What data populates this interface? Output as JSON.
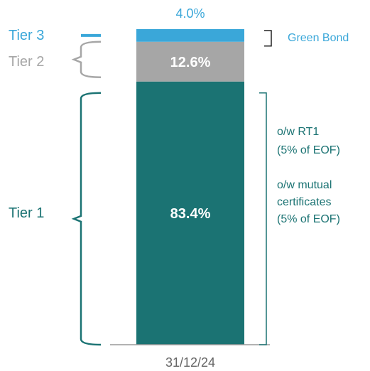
{
  "chart_data": {
    "type": "bar",
    "stacked": true,
    "categories": [
      "31/12/24"
    ],
    "series": [
      {
        "name": "Tier 1",
        "color": "#1b7373",
        "values": [
          83.4
        ],
        "value_labels": [
          "83.4%"
        ]
      },
      {
        "name": "Tier 2",
        "color": "#a6a6a6",
        "values": [
          12.6
        ],
        "value_labels": [
          "12.6%"
        ]
      },
      {
        "name": "Tier 3",
        "color": "#3aa7d9",
        "values": [
          4.0
        ],
        "value_labels": [
          "4.0%"
        ]
      }
    ],
    "ylim": [
      0,
      100
    ],
    "annotations": [
      [
        "Green Bond"
      ],
      [
        "o/w RT1",
        "(5% of EOF)"
      ],
      [
        "o/w mutual",
        "certificates",
        "(5% of EOF)"
      ]
    ]
  }
}
